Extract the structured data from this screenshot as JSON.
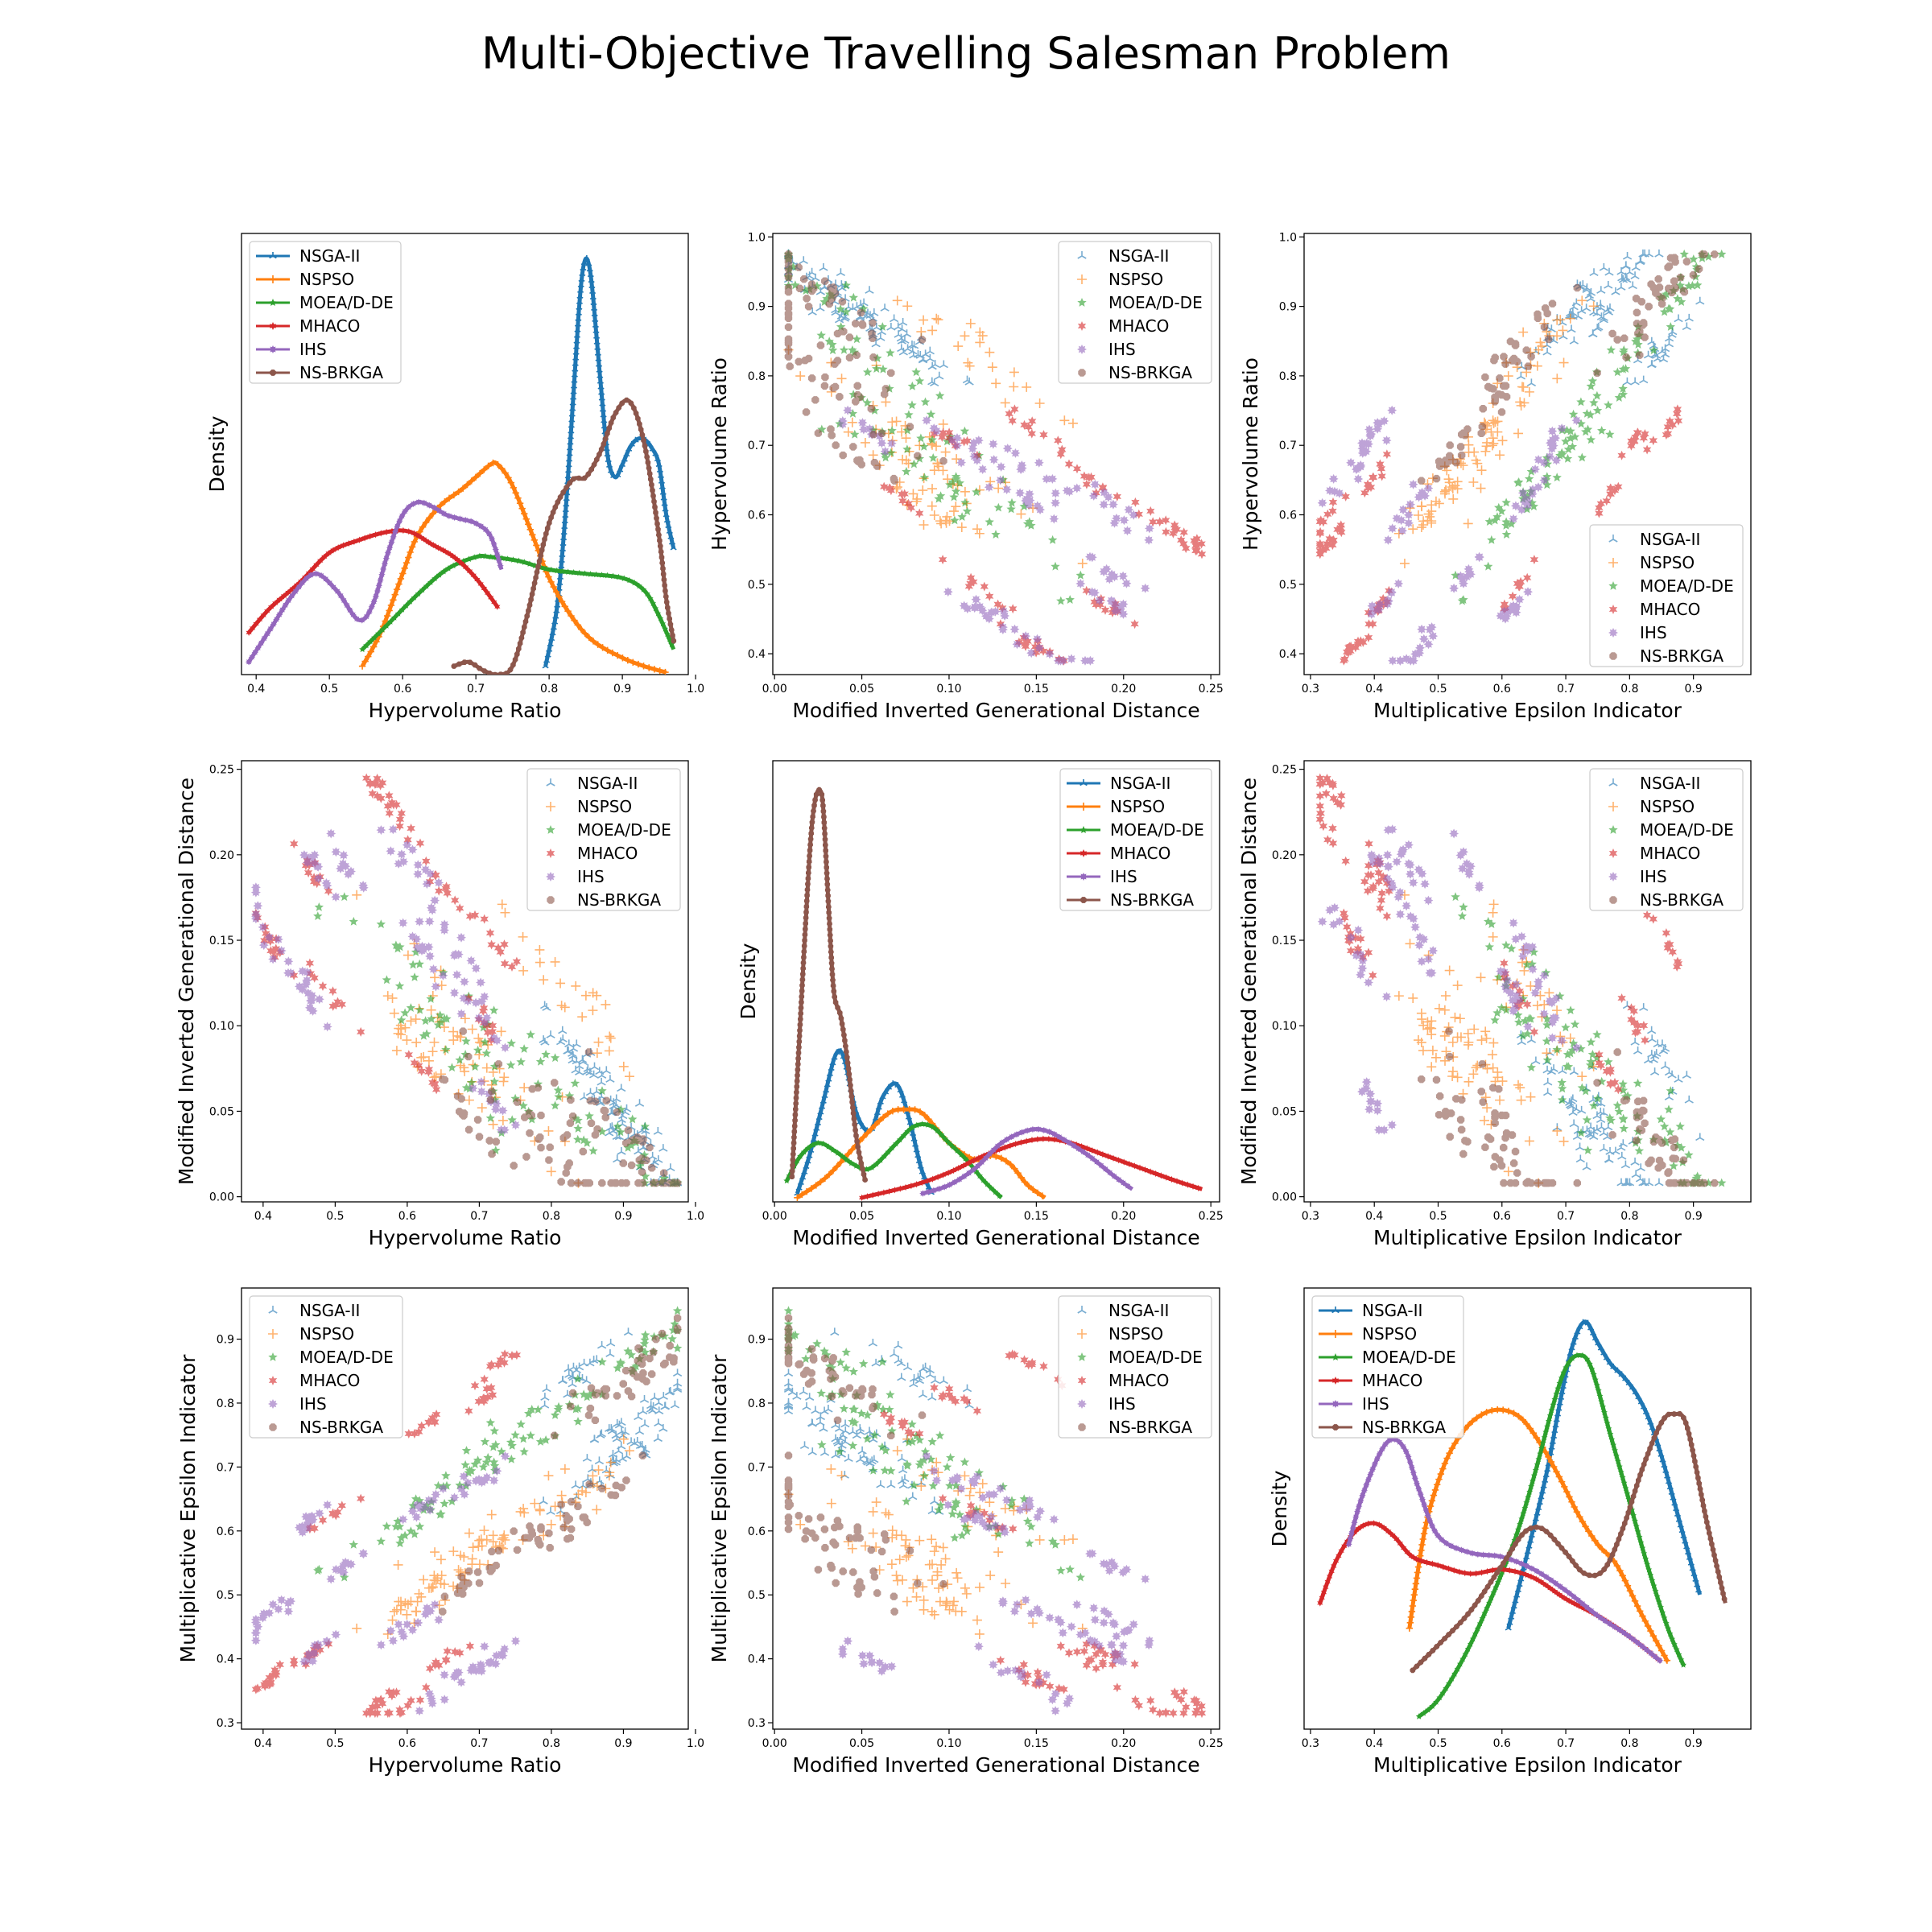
{
  "figure": {
    "title": "Multi-Objective Travelling Salesman Problem"
  },
  "colors": {
    "NSGA-II": "#1f77b4",
    "NSPSO": "#ff7f0e",
    "MOEA/D-DE": "#2ca02c",
    "MHACO": "#d62728",
    "IHS": "#9467bd",
    "NS-BRKGA": "#8c564b"
  },
  "algorithms": [
    "NSGA-II",
    "NSPSO",
    "MOEA/D-DE",
    "MHACO",
    "IHS",
    "NS-BRKGA"
  ],
  "chart_data": [
    {
      "id": "p11",
      "type": "line",
      "xlabel": "Hypervolume Ratio",
      "ylabel": "Density",
      "xlim": [
        0.38,
        0.99
      ],
      "ylim": [
        0,
        1.05
      ],
      "yticks_visible": false,
      "legend": "top-left",
      "xticks": [
        0.4,
        0.5,
        0.6,
        0.7,
        0.8,
        0.9,
        1.0
      ],
      "series": [
        {
          "name": "NSGA-II",
          "x": [
            0.795,
            0.81,
            0.82,
            0.83,
            0.84,
            0.845,
            0.85,
            0.855,
            0.86,
            0.87,
            0.88,
            0.89,
            0.9,
            0.91,
            0.92,
            0.93,
            0.94,
            0.95,
            0.96,
            0.97
          ],
          "y": [
            0.02,
            0.15,
            0.33,
            0.58,
            0.85,
            0.95,
            0.99,
            0.97,
            0.9,
            0.7,
            0.52,
            0.47,
            0.5,
            0.54,
            0.56,
            0.56,
            0.54,
            0.5,
            0.38,
            0.3
          ]
        },
        {
          "name": "NSPSO",
          "x": [
            0.545,
            0.57,
            0.6,
            0.62,
            0.65,
            0.68,
            0.7,
            0.72,
            0.73,
            0.75,
            0.78,
            0.8,
            0.83,
            0.86,
            0.9,
            0.93,
            0.96
          ],
          "y": [
            0.02,
            0.1,
            0.24,
            0.33,
            0.4,
            0.44,
            0.47,
            0.5,
            0.5,
            0.45,
            0.32,
            0.23,
            0.14,
            0.08,
            0.04,
            0.02,
            0.005
          ]
        },
        {
          "name": "MOEA/D-DE",
          "x": [
            0.545,
            0.58,
            0.62,
            0.66,
            0.7,
            0.72,
            0.76,
            0.8,
            0.85,
            0.9,
            0.93,
            0.95,
            0.97
          ],
          "y": [
            0.06,
            0.12,
            0.19,
            0.25,
            0.28,
            0.28,
            0.27,
            0.25,
            0.24,
            0.23,
            0.2,
            0.14,
            0.06
          ]
        },
        {
          "name": "MHACO",
          "x": [
            0.39,
            0.42,
            0.46,
            0.5,
            0.54,
            0.58,
            0.61,
            0.64,
            0.67,
            0.7,
            0.73
          ],
          "y": [
            0.1,
            0.16,
            0.22,
            0.29,
            0.32,
            0.34,
            0.34,
            0.31,
            0.28,
            0.23,
            0.16
          ]
        },
        {
          "name": "IHS",
          "x": [
            0.39,
            0.42,
            0.45,
            0.48,
            0.51,
            0.54,
            0.56,
            0.58,
            0.6,
            0.62,
            0.64,
            0.66,
            0.68,
            0.7,
            0.72,
            0.735
          ],
          "y": [
            0.03,
            0.11,
            0.19,
            0.24,
            0.2,
            0.13,
            0.17,
            0.29,
            0.38,
            0.41,
            0.4,
            0.38,
            0.37,
            0.36,
            0.33,
            0.25
          ]
        },
        {
          "name": "NS-BRKGA",
          "x": [
            0.67,
            0.69,
            0.71,
            0.73,
            0.75,
            0.77,
            0.8,
            0.83,
            0.85,
            0.87,
            0.89,
            0.91,
            0.93,
            0.95,
            0.96,
            0.97
          ],
          "y": [
            0.02,
            0.03,
            0.01,
            0.0,
            0.02,
            0.14,
            0.36,
            0.46,
            0.47,
            0.53,
            0.62,
            0.65,
            0.55,
            0.33,
            0.18,
            0.08
          ]
        }
      ]
    },
    {
      "id": "p12",
      "type": "scatter",
      "xlabel": "Modified Inverted Generational Distance",
      "ylabel": "Hypervolume Ratio",
      "xlim": [
        -0.001,
        0.255
      ],
      "ylim": [
        0.37,
        1.005
      ],
      "legend": "top-right",
      "xticks": [
        0.0,
        0.05,
        0.1,
        0.15,
        0.2,
        0.25
      ],
      "yticks": [
        0.4,
        0.5,
        0.6,
        0.7,
        0.8,
        0.9,
        1.0
      ]
    },
    {
      "id": "p13",
      "type": "scatter",
      "xlabel": "Multiplicative Epsilon Indicator",
      "ylabel": "Hypervolume Ratio",
      "xlim": [
        0.29,
        0.99
      ],
      "ylim": [
        0.37,
        1.005
      ],
      "legend": "bottom-right",
      "xticks": [
        0.3,
        0.4,
        0.5,
        0.6,
        0.7,
        0.8,
        0.9
      ],
      "yticks": [
        0.4,
        0.5,
        0.6,
        0.7,
        0.8,
        0.9,
        1.0
      ]
    },
    {
      "id": "p21",
      "type": "scatter",
      "xlabel": "Hypervolume Ratio",
      "ylabel": "Modified Inverted Generational Distance",
      "xlim": [
        0.37,
        0.99
      ],
      "ylim": [
        -0.003,
        0.255
      ],
      "legend": "top-right",
      "xticks": [
        0.4,
        0.5,
        0.6,
        0.7,
        0.8,
        0.9,
        1.0
      ],
      "yticks": [
        0.0,
        0.05,
        0.1,
        0.15,
        0.2,
        0.25
      ]
    },
    {
      "id": "p22",
      "type": "line",
      "xlabel": "Modified Inverted Generational Distance",
      "ylabel": "Density",
      "xlim": [
        -0.001,
        0.255
      ],
      "ylim": [
        0,
        1.05
      ],
      "yticks_visible": false,
      "legend": "top-right",
      "xticks": [
        0.0,
        0.05,
        0.1,
        0.15,
        0.2,
        0.25
      ],
      "series": [
        {
          "name": "NSGA-II",
          "x": [
            0.013,
            0.02,
            0.028,
            0.035,
            0.04,
            0.047,
            0.055,
            0.062,
            0.07,
            0.077,
            0.084,
            0.09
          ],
          "y": [
            0.02,
            0.11,
            0.24,
            0.35,
            0.34,
            0.21,
            0.17,
            0.25,
            0.28,
            0.2,
            0.08,
            0.02
          ]
        },
        {
          "name": "NSPSO",
          "x": [
            0.013,
            0.03,
            0.05,
            0.065,
            0.075,
            0.085,
            0.1,
            0.115,
            0.125,
            0.135,
            0.145,
            0.155
          ],
          "y": [
            0.01,
            0.06,
            0.15,
            0.21,
            0.22,
            0.21,
            0.14,
            0.1,
            0.11,
            0.09,
            0.04,
            0.01
          ]
        },
        {
          "name": "MOEA/D-DE",
          "x": [
            0.007,
            0.015,
            0.025,
            0.035,
            0.045,
            0.055,
            0.07,
            0.08,
            0.09,
            0.1,
            0.11,
            0.12,
            0.13
          ],
          "y": [
            0.05,
            0.11,
            0.14,
            0.12,
            0.09,
            0.08,
            0.14,
            0.18,
            0.18,
            0.14,
            0.1,
            0.05,
            0.01
          ]
        },
        {
          "name": "MHACO",
          "x": [
            0.05,
            0.08,
            0.1,
            0.12,
            0.14,
            0.155,
            0.17,
            0.19,
            0.21,
            0.23,
            0.245
          ],
          "y": [
            0.01,
            0.04,
            0.07,
            0.11,
            0.14,
            0.15,
            0.14,
            0.11,
            0.08,
            0.05,
            0.03
          ]
        },
        {
          "name": "IHS",
          "x": [
            0.085,
            0.1,
            0.115,
            0.13,
            0.145,
            0.155,
            0.165,
            0.18,
            0.195,
            0.205
          ],
          "y": [
            0.02,
            0.04,
            0.08,
            0.14,
            0.17,
            0.17,
            0.15,
            0.11,
            0.06,
            0.03
          ]
        },
        {
          "name": "NS-BRKGA",
          "x": [
            0.01,
            0.015,
            0.02,
            0.023,
            0.026,
            0.028,
            0.031,
            0.034,
            0.038,
            0.042,
            0.047,
            0.052
          ],
          "y": [
            0.06,
            0.45,
            0.82,
            0.95,
            0.98,
            0.93,
            0.7,
            0.5,
            0.44,
            0.33,
            0.15,
            0.05
          ]
        }
      ]
    },
    {
      "id": "p23",
      "type": "scatter",
      "xlabel": "Multiplicative Epsilon Indicator",
      "ylabel": "Modified Inverted Generational Distance",
      "xlim": [
        0.29,
        0.99
      ],
      "ylim": [
        -0.003,
        0.255
      ],
      "legend": "top-right",
      "xticks": [
        0.3,
        0.4,
        0.5,
        0.6,
        0.7,
        0.8,
        0.9
      ],
      "yticks": [
        0.0,
        0.05,
        0.1,
        0.15,
        0.2,
        0.25
      ]
    },
    {
      "id": "p31",
      "type": "scatter",
      "xlabel": "Hypervolume Ratio",
      "ylabel": "Multiplicative Epsilon Indicator",
      "xlim": [
        0.37,
        0.99
      ],
      "ylim": [
        0.29,
        0.98
      ],
      "legend": "top-left",
      "xticks": [
        0.4,
        0.5,
        0.6,
        0.7,
        0.8,
        0.9,
        1.0
      ],
      "yticks": [
        0.3,
        0.4,
        0.5,
        0.6,
        0.7,
        0.8,
        0.9
      ]
    },
    {
      "id": "p32",
      "type": "scatter",
      "xlabel": "Modified Inverted Generational Distance",
      "ylabel": "Multiplicative Epsilon Indicator",
      "xlim": [
        -0.001,
        0.255
      ],
      "ylim": [
        0.29,
        0.98
      ],
      "legend": "top-right",
      "xticks": [
        0.0,
        0.05,
        0.1,
        0.15,
        0.2,
        0.25
      ],
      "yticks": [
        0.3,
        0.4,
        0.5,
        0.6,
        0.7,
        0.8,
        0.9
      ]
    },
    {
      "id": "p33",
      "type": "line",
      "xlabel": "Multiplicative Epsilon Indicator",
      "ylabel": "Density",
      "xlim": [
        0.29,
        0.99
      ],
      "ylim": [
        0,
        1.05
      ],
      "yticks_visible": false,
      "legend": "top-left",
      "xticks": [
        0.3,
        0.4,
        0.5,
        0.6,
        0.7,
        0.8,
        0.9
      ],
      "series": [
        {
          "name": "NSGA-II",
          "x": [
            0.61,
            0.64,
            0.67,
            0.69,
            0.71,
            0.73,
            0.75,
            0.77,
            0.79,
            0.81,
            0.83,
            0.85,
            0.87,
            0.89,
            0.91
          ],
          "y": [
            0.24,
            0.42,
            0.61,
            0.77,
            0.91,
            0.97,
            0.92,
            0.87,
            0.84,
            0.8,
            0.74,
            0.65,
            0.54,
            0.43,
            0.32
          ]
        },
        {
          "name": "NSPSO",
          "x": [
            0.455,
            0.48,
            0.51,
            0.54,
            0.57,
            0.6,
            0.63,
            0.66,
            0.69,
            0.72,
            0.75,
            0.78,
            0.82,
            0.86
          ],
          "y": [
            0.24,
            0.48,
            0.63,
            0.71,
            0.75,
            0.76,
            0.74,
            0.68,
            0.6,
            0.51,
            0.44,
            0.39,
            0.27,
            0.16
          ]
        },
        {
          "name": "MOEA/D-DE",
          "x": [
            0.47,
            0.5,
            0.54,
            0.58,
            0.62,
            0.65,
            0.68,
            0.7,
            0.72,
            0.74,
            0.77,
            0.8,
            0.83,
            0.86,
            0.885
          ],
          "y": [
            0.03,
            0.07,
            0.17,
            0.3,
            0.45,
            0.6,
            0.77,
            0.86,
            0.89,
            0.86,
            0.7,
            0.54,
            0.38,
            0.24,
            0.15
          ]
        },
        {
          "name": "MHACO",
          "x": [
            0.315,
            0.34,
            0.37,
            0.4,
            0.43,
            0.46,
            0.5,
            0.55,
            0.6,
            0.65,
            0.7,
            0.75,
            0.8,
            0.85
          ],
          "y": [
            0.3,
            0.4,
            0.47,
            0.49,
            0.46,
            0.41,
            0.39,
            0.37,
            0.38,
            0.36,
            0.31,
            0.27,
            0.22,
            0.16
          ]
        },
        {
          "name": "IHS",
          "x": [
            0.36,
            0.38,
            0.41,
            0.43,
            0.45,
            0.47,
            0.5,
            0.55,
            0.6,
            0.65,
            0.7,
            0.75,
            0.8,
            0.85
          ],
          "y": [
            0.44,
            0.55,
            0.66,
            0.69,
            0.66,
            0.57,
            0.46,
            0.42,
            0.41,
            0.38,
            0.33,
            0.27,
            0.22,
            0.16
          ]
        },
        {
          "name": "NS-BRKGA",
          "x": [
            0.46,
            0.5,
            0.55,
            0.6,
            0.63,
            0.65,
            0.67,
            0.7,
            0.73,
            0.76,
            0.79,
            0.82,
            0.85,
            0.87,
            0.89,
            0.92,
            0.95
          ],
          "y": [
            0.14,
            0.2,
            0.28,
            0.39,
            0.46,
            0.48,
            0.47,
            0.42,
            0.37,
            0.38,
            0.48,
            0.62,
            0.73,
            0.75,
            0.72,
            0.5,
            0.3
          ]
        }
      ]
    }
  ],
  "scatter_clusters": [
    {
      "alg": "NSGA-II",
      "hv": 0.93,
      "mi": 0.025,
      "me": 0.78,
      "n": 40,
      "s": 0.04
    },
    {
      "alg": "NSGA-II",
      "hv": 0.88,
      "mi": 0.055,
      "me": 0.7,
      "n": 35,
      "s": 0.04
    },
    {
      "alg": "NSGA-II",
      "hv": 0.84,
      "mi": 0.08,
      "me": 0.85,
      "n": 25,
      "s": 0.03
    },
    {
      "alg": "NSPSO",
      "hv": 0.7,
      "mi": 0.08,
      "me": 0.57,
      "n": 50,
      "s": 0.06
    },
    {
      "alg": "NSPSO",
      "hv": 0.82,
      "mi": 0.12,
      "me": 0.65,
      "n": 25,
      "s": 0.05
    },
    {
      "alg": "NSPSO",
      "hv": 0.6,
      "mi": 0.1,
      "me": 0.48,
      "n": 25,
      "s": 0.04
    },
    {
      "alg": "MOEA/D-DE",
      "hv": 0.65,
      "mi": 0.1,
      "me": 0.66,
      "n": 50,
      "s": 0.06
    },
    {
      "alg": "MOEA/D-DE",
      "hv": 0.8,
      "mi": 0.06,
      "me": 0.77,
      "n": 30,
      "s": 0.05
    },
    {
      "alg": "MOEA/D-DE",
      "hv": 0.92,
      "mi": 0.025,
      "me": 0.87,
      "n": 25,
      "s": 0.04
    },
    {
      "alg": "MHACO",
      "hv": 0.41,
      "mi": 0.15,
      "me": 0.37,
      "n": 15,
      "s": 0.02
    },
    {
      "alg": "MHACO",
      "hv": 0.47,
      "mi": 0.19,
      "me": 0.41,
      "n": 12,
      "s": 0.015
    },
    {
      "alg": "MHACO",
      "hv": 0.56,
      "mi": 0.24,
      "me": 0.33,
      "n": 12,
      "s": 0.015
    },
    {
      "alg": "MHACO",
      "hv": 0.59,
      "mi": 0.22,
      "me": 0.32,
      "n": 12,
      "s": 0.015
    },
    {
      "alg": "MHACO",
      "hv": 0.5,
      "mi": 0.115,
      "me": 0.63,
      "n": 10,
      "s": 0.015
    },
    {
      "alg": "MHACO",
      "hv": 0.62,
      "mi": 0.075,
      "me": 0.76,
      "n": 10,
      "s": 0.015
    },
    {
      "alg": "MHACO",
      "hv": 0.7,
      "mi": 0.105,
      "me": 0.8,
      "n": 10,
      "s": 0.015
    },
    {
      "alg": "MHACO",
      "hv": 0.72,
      "mi": 0.15,
      "me": 0.855,
      "n": 10,
      "s": 0.015
    },
    {
      "alg": "MHACO",
      "hv": 0.65,
      "mi": 0.18,
      "me": 0.4,
      "n": 10,
      "s": 0.015
    },
    {
      "alg": "IHS",
      "hv": 0.4,
      "mi": 0.155,
      "me": 0.465,
      "n": 15,
      "s": 0.02
    },
    {
      "alg": "IHS",
      "hv": 0.47,
      "mi": 0.195,
      "me": 0.41,
      "n": 12,
      "s": 0.02
    },
    {
      "alg": "IHS",
      "hv": 0.52,
      "mi": 0.19,
      "me": 0.55,
      "n": 10,
      "s": 0.015
    },
    {
      "alg": "IHS",
      "hv": 0.47,
      "mi": 0.115,
      "me": 0.62,
      "n": 14,
      "s": 0.02
    },
    {
      "alg": "IHS",
      "hv": 0.6,
      "mi": 0.2,
      "me": 0.45,
      "n": 15,
      "s": 0.02
    },
    {
      "alg": "IHS",
      "hv": 0.66,
      "mi": 0.15,
      "me": 0.36,
      "n": 15,
      "s": 0.025
    },
    {
      "alg": "IHS",
      "hv": 0.62,
      "mi": 0.145,
      "me": 0.64,
      "n": 14,
      "s": 0.02
    },
    {
      "alg": "IHS",
      "hv": 0.7,
      "mi": 0.105,
      "me": 0.68,
      "n": 12,
      "s": 0.02
    },
    {
      "alg": "IHS",
      "hv": 0.72,
      "mi": 0.055,
      "me": 0.4,
      "n": 12,
      "s": 0.02
    },
    {
      "alg": "NS-BRKGA",
      "hv": 0.92,
      "mi": 0.025,
      "me": 0.85,
      "n": 45,
      "s": 0.045
    },
    {
      "alg": "NS-BRKGA",
      "hv": 0.8,
      "mi": 0.03,
      "me": 0.6,
      "n": 40,
      "s": 0.05
    },
    {
      "alg": "NS-BRKGA",
      "hv": 0.68,
      "mi": 0.05,
      "me": 0.52,
      "n": 15,
      "s": 0.03
    }
  ]
}
